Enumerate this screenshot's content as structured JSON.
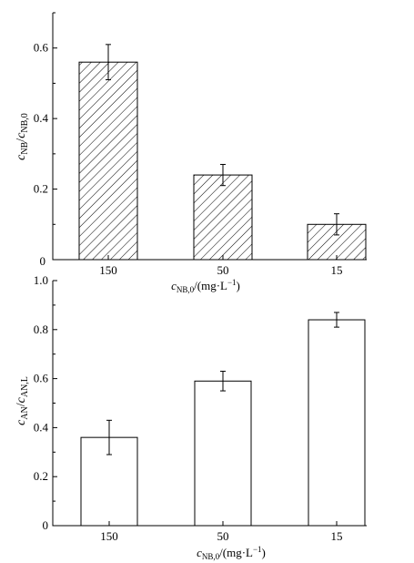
{
  "chart_data": [
    {
      "type": "bar",
      "fill": "hatched",
      "categories": [
        "150",
        "50",
        "15"
      ],
      "values": [
        0.56,
        0.24,
        0.1
      ],
      "errors": [
        0.05,
        0.03,
        0.03
      ],
      "ylim": [
        0,
        0.7
      ],
      "yticks": [
        "0.2",
        "0.4",
        "0.6"
      ],
      "ytick_values": [
        0.2,
        0.4,
        0.6
      ],
      "ylabel": {
        "c1": "c",
        "s1": "NB",
        "slash": "/",
        "c2": "c",
        "s2": "NB,0"
      },
      "xlabel": {
        "c": "c",
        "s": "NB,0",
        "unit": "/(mg·L",
        "exp": "−1",
        "close": ")"
      },
      "origin_label": "0",
      "grid": false
    },
    {
      "type": "bar",
      "fill": "white",
      "categories": [
        "150",
        "50",
        "15"
      ],
      "values": [
        0.36,
        0.59,
        0.84
      ],
      "errors": [
        0.07,
        0.04,
        0.03
      ],
      "ylim": [
        0,
        1.0
      ],
      "yticks": [
        "0",
        "0.2",
        "0.4",
        "0.6",
        "0.8",
        "1.0"
      ],
      "ytick_values": [
        0,
        0.2,
        0.4,
        0.6,
        0.8,
        1.0
      ],
      "ylabel": {
        "c1": "c",
        "s1": "AN",
        "slash": "/",
        "c2": "c",
        "s2": "AN,L"
      },
      "xlabel": {
        "c": "c",
        "s": "NB,0",
        "unit": "/(mg·L",
        "exp": "−1",
        "close": ")"
      },
      "grid": false
    }
  ]
}
